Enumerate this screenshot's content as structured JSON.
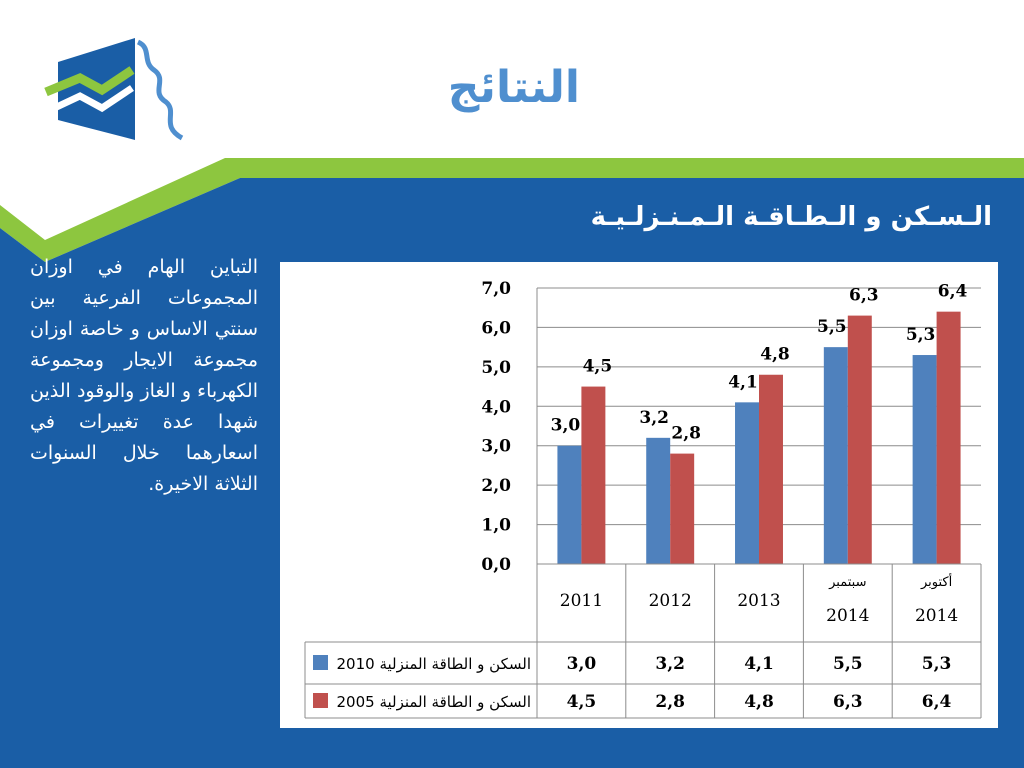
{
  "slide": {
    "title": "النتائج",
    "subtitle": "الـسـكن و الـطـاقـة الـمـنـزلـيـة",
    "body": "التباين الهام في اوزان المجموعات الفرعية بين سنتي الاساس و خاصة اوزان مجموعة الايجار ومجموعة الكهرباء و الغاز والوقود الذين شهدا عدة تغييرات في اسعارهما خلال السنوات الثلاثة الاخيرة."
  },
  "colors": {
    "band_blue": "#1a5ea6",
    "band_green": "#8dc63f",
    "title_blue": "#4f8fcf",
    "series_2010": "#4f81bd",
    "series_2005": "#c0504d"
  },
  "chart_data": {
    "type": "bar",
    "categories": [
      "2011",
      "2012",
      "2013",
      "سبتمبر 2014",
      "أكتوبر 2014"
    ],
    "category_labels": [
      {
        "line1": "",
        "line2": "2011"
      },
      {
        "line1": "",
        "line2": "2012"
      },
      {
        "line1": "",
        "line2": "2013"
      },
      {
        "line1": "سبتمبر",
        "line2": "2014"
      },
      {
        "line1": "أكتوبر",
        "line2": "2014"
      }
    ],
    "series": [
      {
        "name": "السكن و الطاقة المنزلية 2010",
        "values": [
          3.0,
          3.2,
          4.1,
          5.5,
          5.3
        ],
        "labels": [
          "3,0",
          "3,2",
          "4,1",
          "5,5",
          "5,3"
        ],
        "color": "#4f81bd"
      },
      {
        "name": "السكن و الطاقة المنزلية 2005",
        "values": [
          4.5,
          2.8,
          4.8,
          6.3,
          6.4
        ],
        "labels": [
          "4,5",
          "2,8",
          "4,8",
          "6,3",
          "6,4"
        ],
        "color": "#c0504d"
      }
    ],
    "yticks": [
      "0,0",
      "1,0",
      "2,0",
      "3,0",
      "4,0",
      "5,0",
      "6,0",
      "7,0"
    ],
    "ylim": [
      0,
      7
    ],
    "grid": true,
    "data_table": true,
    "legend": "in-table"
  }
}
